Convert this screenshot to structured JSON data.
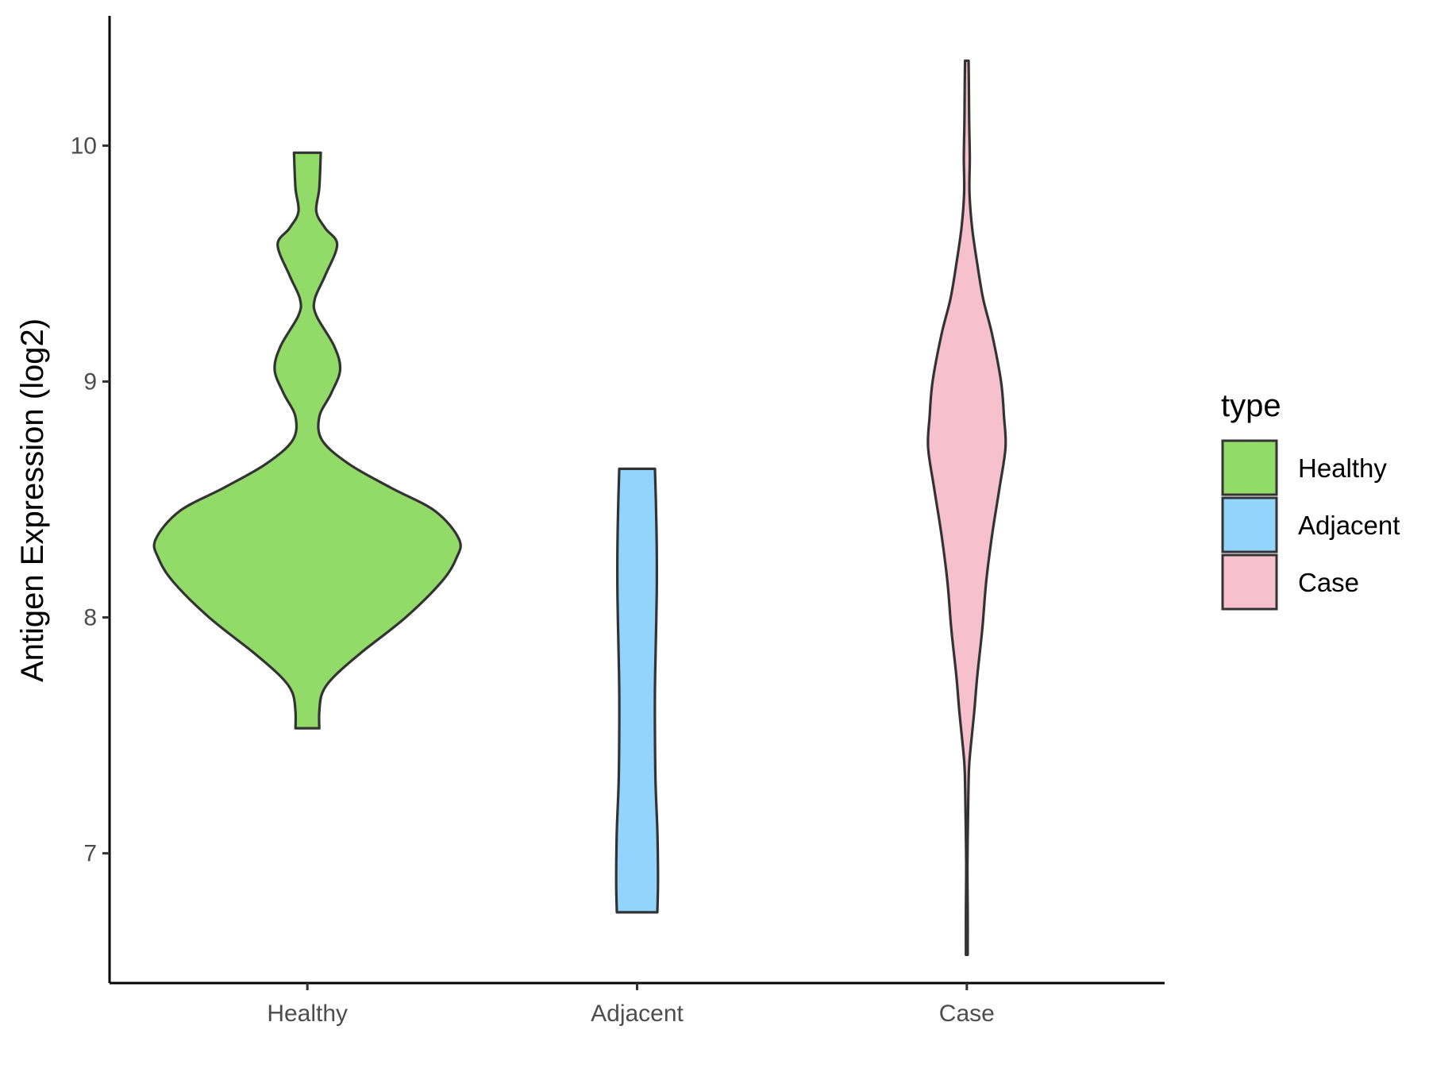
{
  "chart_data": {
    "type": "violin",
    "ylabel": "Antigen Expression (log2)",
    "xlabel": "",
    "ylim": [
      6.45,
      10.55
    ],
    "yticks": [
      7,
      8,
      9,
      10
    ],
    "categories": [
      "Healthy",
      "Adjacent",
      "Case"
    ],
    "legend": {
      "title": "type",
      "position": "right",
      "entries": [
        "Healthy",
        "Adjacent",
        "Case"
      ]
    },
    "grid": false,
    "series": [
      {
        "name": "Healthy",
        "color": "#93DB69",
        "min": 7.53,
        "max": 9.97,
        "profile": [
          [
            7.53,
            0.04
          ],
          [
            7.6,
            0.04
          ],
          [
            7.68,
            0.05
          ],
          [
            7.75,
            0.09
          ],
          [
            7.85,
            0.18
          ],
          [
            8.0,
            0.33
          ],
          [
            8.15,
            0.45
          ],
          [
            8.25,
            0.5
          ],
          [
            8.33,
            0.51
          ],
          [
            8.45,
            0.43
          ],
          [
            8.55,
            0.28
          ],
          [
            8.65,
            0.14
          ],
          [
            8.75,
            0.05
          ],
          [
            8.85,
            0.04
          ],
          [
            8.95,
            0.08
          ],
          [
            9.05,
            0.11
          ],
          [
            9.15,
            0.09
          ],
          [
            9.28,
            0.03
          ],
          [
            9.35,
            0.025
          ],
          [
            9.45,
            0.06
          ],
          [
            9.58,
            0.1
          ],
          [
            9.65,
            0.06
          ],
          [
            9.72,
            0.03
          ],
          [
            9.82,
            0.04
          ],
          [
            9.97,
            0.045
          ]
        ]
      },
      {
        "name": "Adjacent",
        "color": "#92D4FC",
        "min": 6.75,
        "max": 8.63,
        "profile": [
          [
            6.75,
            0.068
          ],
          [
            6.85,
            0.07
          ],
          [
            6.95,
            0.07
          ],
          [
            7.1,
            0.068
          ],
          [
            7.3,
            0.062
          ],
          [
            7.5,
            0.06
          ],
          [
            7.7,
            0.06
          ],
          [
            7.9,
            0.063
          ],
          [
            8.1,
            0.066
          ],
          [
            8.3,
            0.066
          ],
          [
            8.5,
            0.063
          ],
          [
            8.63,
            0.06
          ]
        ]
      },
      {
        "name": "Case",
        "color": "#F7C0CD",
        "min": 6.57,
        "max": 10.36,
        "profile": [
          [
            6.57,
            0.003
          ],
          [
            6.75,
            0.003
          ],
          [
            6.95,
            0.002
          ],
          [
            7.15,
            0.004
          ],
          [
            7.35,
            0.007
          ],
          [
            7.45,
            0.013
          ],
          [
            7.6,
            0.025
          ],
          [
            7.75,
            0.035
          ],
          [
            7.95,
            0.052
          ],
          [
            8.15,
            0.065
          ],
          [
            8.35,
            0.085
          ],
          [
            8.55,
            0.11
          ],
          [
            8.72,
            0.13
          ],
          [
            8.85,
            0.125
          ],
          [
            9.0,
            0.115
          ],
          [
            9.2,
            0.085
          ],
          [
            9.35,
            0.055
          ],
          [
            9.5,
            0.035
          ],
          [
            9.65,
            0.018
          ],
          [
            9.8,
            0.009
          ],
          [
            9.95,
            0.01
          ],
          [
            10.1,
            0.008
          ],
          [
            10.25,
            0.007
          ],
          [
            10.36,
            0.006
          ]
        ]
      }
    ]
  }
}
